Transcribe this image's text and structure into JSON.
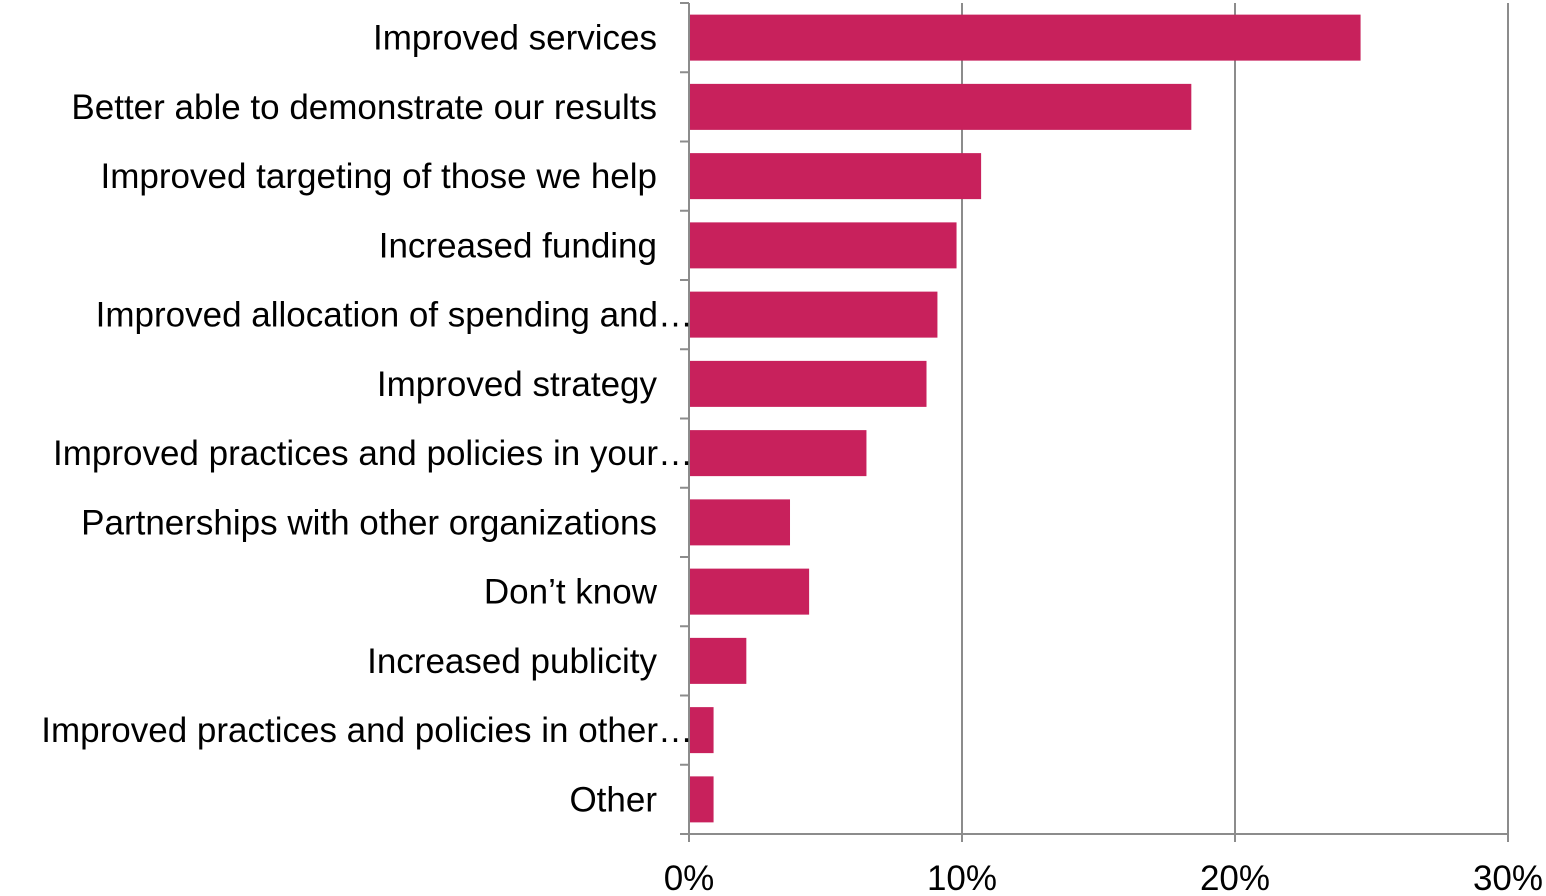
{
  "chart_data": {
    "type": "bar",
    "orientation": "horizontal",
    "categories": [
      "Improved services",
      "Better able to demonstrate our results",
      "Improved targeting of those we help",
      "Increased funding",
      "Improved allocation of spending and…",
      "Improved strategy",
      "Improved practices and policies in your…",
      "Partnerships with other organizations",
      "Don’t know",
      "Increased publicity",
      "Improved practices and policies in other…",
      "Other"
    ],
    "values": [
      24.6,
      18.4,
      10.7,
      9.8,
      9.1,
      8.7,
      6.5,
      3.7,
      4.4,
      2.1,
      0.9,
      0.9
    ],
    "xlim": [
      0,
      30
    ],
    "xticks": [
      0,
      10,
      20,
      30
    ],
    "xtick_labels": [
      "0%",
      "10%",
      "20%",
      "30%"
    ],
    "title": "",
    "xlabel": "",
    "ylabel": "",
    "grid": "vertical",
    "legend": "none",
    "colors": {
      "bar": "#C8215C",
      "grid": "#8C8C8C",
      "axis": "#8C8C8C",
      "text": "#000000"
    }
  }
}
